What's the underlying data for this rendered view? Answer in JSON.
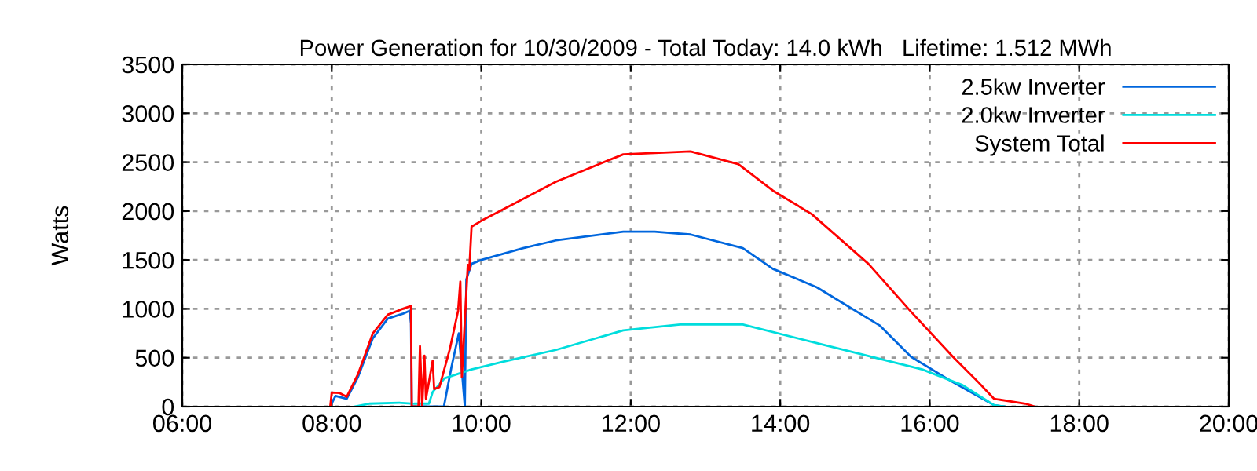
{
  "chart_data": {
    "type": "line",
    "title": "Power Generation for 10/30/2009 - Total Today: 14.0 kWh   Lifetime: 1.512 MWh",
    "ylabel": "Watts",
    "xlim": [
      6,
      20
    ],
    "xticks": [
      {
        "value": 6,
        "label": "06:00"
      },
      {
        "value": 8,
        "label": "08:00"
      },
      {
        "value": 10,
        "label": "10:00"
      },
      {
        "value": 12,
        "label": "12:00"
      },
      {
        "value": 14,
        "label": "14:00"
      },
      {
        "value": 16,
        "label": "16:00"
      },
      {
        "value": 18,
        "label": "18:00"
      },
      {
        "value": 20,
        "label": "20:00"
      }
    ],
    "ylim": [
      0,
      3500
    ],
    "yticks": [
      0,
      500,
      1000,
      1500,
      2000,
      2500,
      3000,
      3500
    ],
    "grid": true,
    "legend": "top right",
    "series": [
      {
        "name": "2.5kw Inverter",
        "color": "#0066dd",
        "x": [
          7.98,
          8.05,
          8.2,
          8.35,
          8.55,
          8.75,
          8.95,
          9.04,
          9.06,
          9.07,
          9.3,
          9.5,
          9.6,
          9.7,
          9.78,
          9.8,
          9.87,
          10.0,
          10.56,
          11.0,
          11.9,
          12.32,
          12.8,
          13.5,
          13.9,
          14.49,
          15.33,
          15.75,
          16.31,
          16.86,
          17.0
        ],
        "values": [
          0,
          110,
          80,
          300,
          700,
          900,
          950,
          980,
          850,
          0,
          0,
          0,
          400,
          750,
          0,
          1300,
          1460,
          1500,
          1620,
          1700,
          1790,
          1790,
          1760,
          1620,
          1410,
          1220,
          830,
          510,
          250,
          15,
          0
        ]
      },
      {
        "name": "2.0kw Inverter",
        "color": "#00dddd",
        "x": [
          8.3,
          8.5,
          8.9,
          9.1,
          9.3,
          9.35,
          9.51,
          9.87,
          10.3,
          11.0,
          11.9,
          12.66,
          13.5,
          14.49,
          15.9,
          16.44,
          16.86,
          17.0
        ],
        "values": [
          0,
          30,
          40,
          30,
          30,
          150,
          290,
          380,
          460,
          580,
          780,
          840,
          840,
          650,
          380,
          220,
          15,
          0
        ]
      },
      {
        "name": "System Total",
        "color": "#ff0000",
        "x": [
          7.98,
          8.0,
          8.1,
          8.2,
          8.35,
          8.55,
          8.75,
          8.95,
          9.06,
          9.07,
          9.16,
          9.18,
          9.21,
          9.24,
          9.26,
          9.35,
          9.37,
          9.44,
          9.58,
          9.69,
          9.72,
          9.74,
          9.82,
          9.84,
          9.87,
          10.0,
          11.0,
          11.9,
          12.8,
          13.44,
          13.9,
          14.42,
          15.18,
          15.75,
          16.31,
          16.65,
          16.86,
          17.28,
          17.4
        ],
        "values": [
          0,
          143,
          140,
          100,
          330,
          750,
          940,
          1000,
          1030,
          0,
          0,
          620,
          0,
          520,
          80,
          470,
          180,
          200,
          590,
          980,
          1280,
          300,
          1450,
          1400,
          1840,
          1900,
          2300,
          2580,
          2610,
          2480,
          2210,
          1970,
          1460,
          970,
          510,
          250,
          80,
          30,
          0
        ]
      }
    ]
  }
}
